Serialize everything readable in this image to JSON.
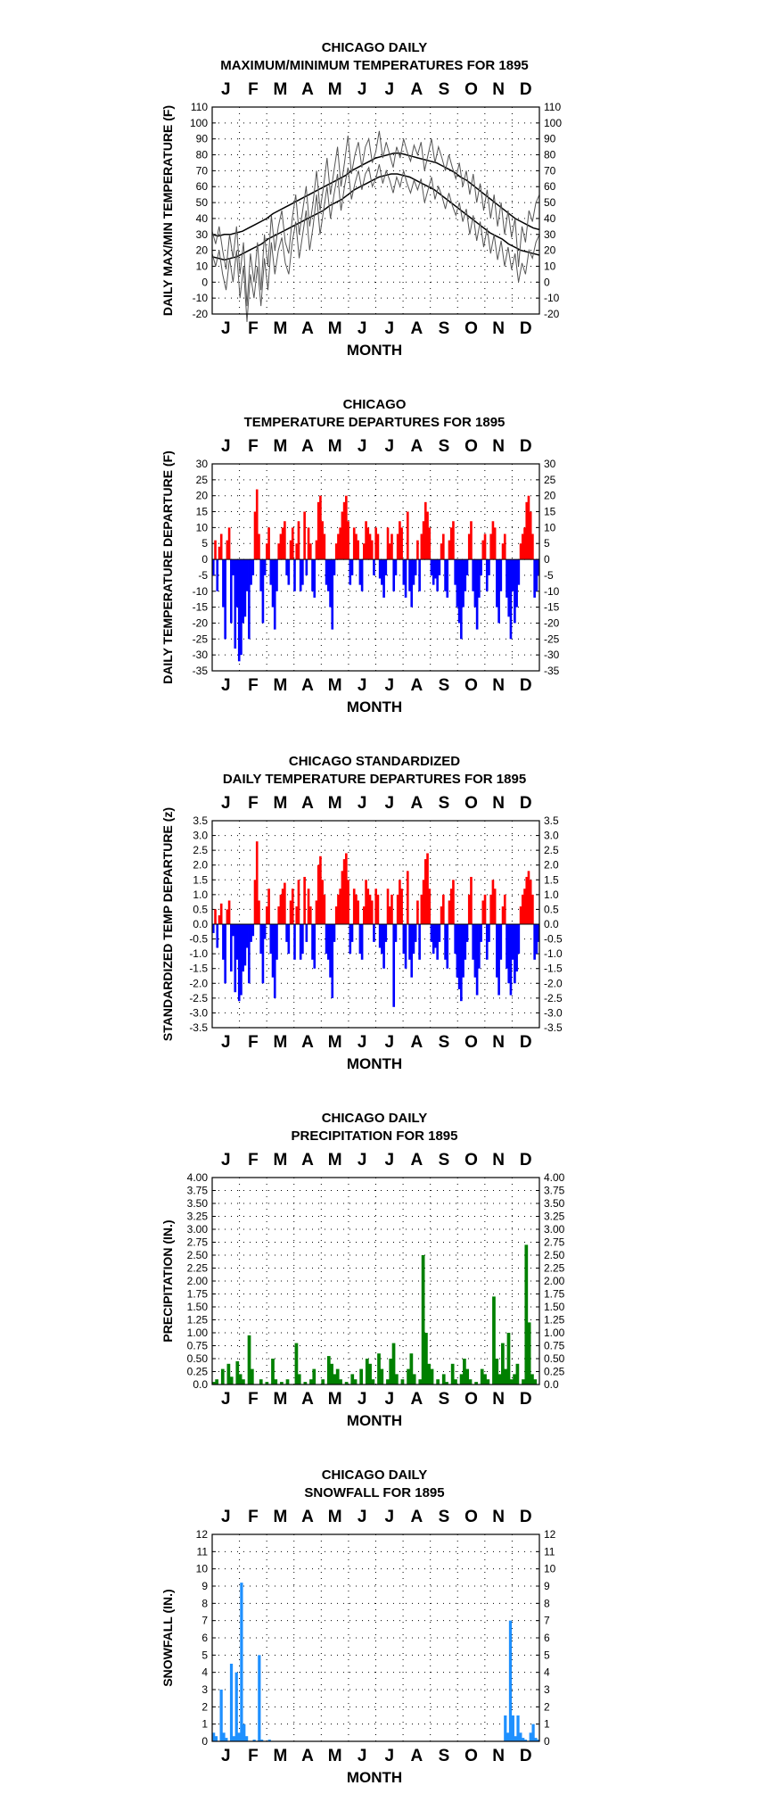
{
  "chart_data": [
    {
      "type": "line",
      "title": "CHICAGO DAILY",
      "subtitle": "MAXIMUM/MINIMUM TEMPERATURES FOR 1895",
      "xlabel": "MONTH",
      "ylabel": "DAILY MAX/MIN TEMPERATURE (F)",
      "ylim": [
        -20,
        110
      ],
      "yticks": [
        "110",
        "100",
        "90",
        "80",
        "70",
        "60",
        "50",
        "40",
        "30",
        "20",
        "10",
        "0",
        "-10",
        "-20"
      ],
      "months": [
        "J",
        "F",
        "M",
        "A",
        "M",
        "J",
        "J",
        "A",
        "S",
        "O",
        "N",
        "D"
      ],
      "grid": true,
      "series": [
        {
          "values": [
            30,
            29,
            30,
            30,
            31,
            32,
            34,
            36,
            38,
            40,
            43,
            45,
            47,
            49,
            51,
            53,
            55,
            57,
            59,
            61,
            63,
            65,
            67,
            70,
            72,
            74,
            76,
            78,
            79,
            80,
            81,
            81,
            80,
            79,
            78,
            77,
            76,
            75,
            73,
            71,
            69,
            66,
            64,
            61,
            58,
            55,
            52,
            49,
            46,
            43,
            40,
            38,
            36,
            34,
            33
          ]
        },
        {
          "values": [
            16,
            15,
            14,
            15,
            16,
            18,
            20,
            22,
            24,
            27,
            29,
            31,
            33,
            35,
            37,
            39,
            41,
            43,
            45,
            48,
            50,
            52,
            55,
            58,
            60,
            62,
            64,
            66,
            67,
            68,
            68,
            67,
            66,
            64,
            62,
            60,
            58,
            55,
            52,
            49,
            46,
            43,
            40,
            37,
            34,
            31,
            29,
            27,
            24,
            22,
            20,
            19,
            18,
            17
          ]
        },
        {
          "values": [
            32,
            24,
            35,
            20,
            8,
            30,
            15,
            35,
            5,
            25,
            -15,
            18,
            0,
            25,
            -5,
            30,
            10,
            42,
            20,
            35,
            45,
            25,
            18,
            40,
            55,
            30,
            45,
            60,
            35,
            50,
            70,
            45,
            60,
            78,
            55,
            70,
            85,
            60,
            75,
            92,
            68,
            80,
            88,
            72,
            85,
            90,
            75,
            82,
            95,
            78,
            88,
            80,
            72,
            85,
            78,
            90,
            82,
            76,
            86,
            80,
            88,
            70,
            80,
            90,
            75,
            85,
            78,
            70,
            80,
            72,
            65,
            75,
            60,
            70,
            55,
            68,
            50,
            62,
            45,
            58,
            40,
            55,
            35,
            50,
            30,
            45,
            28,
            40,
            10,
            35,
            25,
            45,
            38,
            50,
            55
          ]
        },
        {
          "values": [
            18,
            10,
            20,
            5,
            -5,
            15,
            0,
            20,
            -10,
            10,
            -25,
            5,
            -10,
            10,
            -15,
            15,
            -5,
            25,
            5,
            20,
            28,
            12,
            5,
            25,
            38,
            15,
            30,
            45,
            20,
            35,
            55,
            30,
            45,
            60,
            40,
            55,
            68,
            45,
            60,
            72,
            52,
            62,
            70,
            58,
            68,
            72,
            60,
            65,
            74,
            62,
            70,
            64,
            56,
            66,
            60,
            70,
            62,
            56,
            64,
            58,
            65,
            50,
            58,
            66,
            52,
            60,
            54,
            46,
            56,
            48,
            42,
            50,
            38,
            46,
            30,
            42,
            26,
            38,
            22,
            34,
            18,
            30,
            14,
            26,
            10,
            22,
            8,
            18,
            0,
            12,
            5,
            20,
            15,
            25,
            30
          ]
        }
      ]
    },
    {
      "type": "bar",
      "title": "CHICAGO",
      "subtitle": "TEMPERATURE DEPARTURES FOR 1895",
      "xlabel": "MONTH",
      "ylabel": "DAILY TEMPERATURE DEPARTURE (F)",
      "ylim": [
        -35,
        30
      ],
      "yticks": [
        "30",
        "25",
        "20",
        "15",
        "10",
        "5",
        "0",
        "-5",
        "-10",
        "-15",
        "-20",
        "-25",
        "-30",
        "-35"
      ],
      "months": [
        "J",
        "F",
        "M",
        "A",
        "M",
        "J",
        "J",
        "A",
        "S",
        "O",
        "N",
        "D"
      ],
      "grid": true,
      "colors": {
        "positive": "#ff0000",
        "negative": "#0000ff"
      },
      "values": [
        -5,
        6,
        -10,
        4,
        8,
        -15,
        -25,
        6,
        10,
        -20,
        -5,
        -28,
        -15,
        -32,
        -30,
        -20,
        -18,
        -10,
        -25,
        -8,
        -5,
        15,
        22,
        8,
        -10,
        -20,
        -5,
        5,
        10,
        -8,
        -15,
        -22,
        -10,
        5,
        8,
        10,
        12,
        -5,
        -8,
        6,
        10,
        -10,
        5,
        12,
        -10,
        -8,
        15,
        -5,
        10,
        5,
        -10,
        -12,
        6,
        18,
        20,
        12,
        8,
        -8,
        -10,
        -15,
        -22,
        -5,
        5,
        8,
        10,
        15,
        18,
        20,
        12,
        -8,
        -5,
        10,
        8,
        6,
        -8,
        -10,
        5,
        12,
        10,
        8,
        6,
        -5,
        10,
        8,
        -6,
        -8,
        -12,
        -5,
        10,
        5,
        8,
        -10,
        -5,
        8,
        12,
        10,
        -8,
        -12,
        15,
        -10,
        -15,
        -8,
        -5,
        6,
        -10,
        8,
        12,
        18,
        15,
        10,
        -5,
        -8,
        -6,
        -10,
        -5,
        5,
        8,
        -10,
        -12,
        6,
        10,
        12,
        -8,
        -15,
        -20,
        -25,
        -15,
        -10,
        -5,
        8,
        12,
        -10,
        -15,
        -22,
        -12,
        -5,
        6,
        8,
        -10,
        -5,
        8,
        12,
        10,
        -15,
        -20,
        -10,
        5,
        8,
        -12,
        -18,
        -25,
        -10,
        -20,
        -15,
        -8,
        5,
        8,
        10,
        18,
        20,
        15,
        8,
        -12,
        -10,
        -5
      ]
    },
    {
      "type": "bar",
      "title": "CHICAGO STANDARDIZED",
      "subtitle": "DAILY TEMPERATURE DEPARTURES FOR 1895",
      "xlabel": "MONTH",
      "ylabel": "STANDARDIZED TEMP DEPARTURE (z)",
      "ylim": [
        -3.5,
        3.5
      ],
      "yticks": [
        "3.5",
        "3.0",
        "2.5",
        "2.0",
        "1.5",
        "1.0",
        "0.5",
        "0.0",
        "-0.5",
        "-1.0",
        "-1.5",
        "-2.0",
        "-2.5",
        "-3.0",
        "-3.5"
      ],
      "months": [
        "J",
        "F",
        "M",
        "A",
        "M",
        "J",
        "J",
        "A",
        "S",
        "O",
        "N",
        "D"
      ],
      "grid": true,
      "colors": {
        "positive": "#ff0000",
        "negative": "#0000ff"
      },
      "values": [
        -0.3,
        0.5,
        -0.8,
        0.3,
        0.7,
        -1.2,
        -2.0,
        0.5,
        0.8,
        -1.6,
        -0.4,
        -2.3,
        -1.2,
        -2.6,
        -2.4,
        -1.6,
        -1.4,
        -0.8,
        -2.0,
        -0.6,
        -0.4,
        1.5,
        2.8,
        0.8,
        -1.0,
        -2.0,
        -0.5,
        0.6,
        1.2,
        -1.0,
        -1.8,
        -2.5,
        -1.2,
        0.6,
        1.0,
        1.2,
        1.4,
        -0.6,
        -1.0,
        0.8,
        1.2,
        -1.2,
        0.6,
        1.5,
        -1.2,
        -1.0,
        1.6,
        -0.6,
        1.2,
        0.6,
        -1.2,
        -1.5,
        0.8,
        2.0,
        2.3,
        1.5,
        1.0,
        -1.0,
        -1.2,
        -1.8,
        -2.5,
        -0.6,
        0.6,
        1.0,
        1.2,
        1.8,
        2.2,
        2.4,
        1.5,
        -1.0,
        -0.6,
        1.2,
        1.0,
        0.8,
        -1.0,
        -1.2,
        0.6,
        1.5,
        1.2,
        1.0,
        0.8,
        -0.6,
        1.2,
        1.0,
        -0.8,
        -1.0,
        -1.5,
        -0.6,
        1.2,
        0.6,
        1.0,
        -2.8,
        -0.6,
        1.0,
        1.5,
        1.2,
        -1.0,
        -1.5,
        1.8,
        -1.2,
        -1.8,
        -1.0,
        -0.6,
        0.8,
        -1.2,
        1.0,
        1.5,
        2.2,
        2.4,
        1.2,
        -0.6,
        -1.0,
        -0.8,
        -1.2,
        -0.6,
        0.6,
        1.0,
        -1.2,
        -1.5,
        0.8,
        1.2,
        1.5,
        -1.0,
        -1.8,
        -2.2,
        -2.6,
        -1.8,
        -1.2,
        -0.6,
        1.0,
        1.6,
        -1.2,
        -1.8,
        -2.4,
        -1.5,
        -0.6,
        0.8,
        1.0,
        -1.2,
        -0.6,
        1.0,
        1.5,
        1.2,
        -1.8,
        -2.4,
        -1.2,
        0.6,
        1.0,
        -1.5,
        -2.0,
        -2.4,
        -1.2,
        -2.0,
        -1.6,
        -1.0,
        0.6,
        1.0,
        1.2,
        1.6,
        1.8,
        1.5,
        1.0,
        -1.2,
        -1.0,
        -0.6
      ]
    },
    {
      "type": "bar",
      "title": "CHICAGO DAILY",
      "subtitle": "PRECIPITATION FOR 1895",
      "xlabel": "MONTH",
      "ylabel": "PRECIPITATION (IN.)",
      "ylim": [
        0,
        4
      ],
      "yticks": [
        "4.00",
        "3.75",
        "3.50",
        "3.25",
        "3.00",
        "2.75",
        "2.50",
        "2.25",
        "2.00",
        "1.75",
        "1.50",
        "1.25",
        "1.00",
        "0.75",
        "0.50",
        "0.25",
        "0.0"
      ],
      "months": [
        "J",
        "F",
        "M",
        "A",
        "M",
        "J",
        "J",
        "A",
        "S",
        "O",
        "N",
        "D"
      ],
      "grid": true,
      "colors": {
        "bar": "#008000"
      },
      "values": [
        0.05,
        0.1,
        0,
        0.3,
        0,
        0.4,
        0.15,
        0,
        0.45,
        0.2,
        0.1,
        0,
        0.95,
        0.3,
        0,
        0,
        0.1,
        0,
        0.05,
        0,
        0.5,
        0.1,
        0,
        0.05,
        0,
        0.1,
        0,
        0,
        0.8,
        0.2,
        0,
        0.05,
        0,
        0.1,
        0.3,
        0,
        0,
        0.1,
        0,
        0.55,
        0.4,
        0.2,
        0.3,
        0.1,
        0,
        0.05,
        0,
        0.2,
        0.1,
        0,
        0.3,
        0,
        0.5,
        0.4,
        0.1,
        0,
        0.6,
        0.3,
        0,
        0.1,
        0.5,
        0.8,
        0.2,
        0,
        0.1,
        0,
        0.3,
        0.6,
        0.2,
        0,
        0.1,
        2.5,
        1.0,
        0.4,
        0.3,
        0,
        0.1,
        0,
        0.2,
        0.05,
        0,
        0.4,
        0.1,
        0,
        0.2,
        0.5,
        0.3,
        0.1,
        0,
        0.05,
        0,
        0.3,
        0.2,
        0.1,
        0,
        1.7,
        0.5,
        0.2,
        0.8,
        0.3,
        1.0,
        0.1,
        0.2,
        0.4,
        0,
        0.1,
        2.7,
        1.2,
        0.2,
        0.1,
        0
      ]
    },
    {
      "type": "bar",
      "title": "CHICAGO DAILY",
      "subtitle": "SNOWFALL FOR 1895",
      "xlabel": "MONTH",
      "ylabel": "SNOWFALL (IN.)",
      "ylim": [
        0,
        12
      ],
      "yticks": [
        "12",
        "11",
        "10",
        "9",
        "8",
        "7",
        "6",
        "5",
        "4",
        "3",
        "2",
        "1",
        "0"
      ],
      "months": [
        "J",
        "F",
        "M",
        "A",
        "M",
        "J",
        "J",
        "A",
        "S",
        "O",
        "N",
        "D"
      ],
      "grid": true,
      "colors": {
        "bar": "#1e90ff"
      },
      "values": [
        0.5,
        0.3,
        0,
        3.0,
        0.5,
        0.2,
        0,
        4.5,
        0.3,
        4.0,
        0.5,
        9.2,
        1.0,
        0.3,
        0,
        0,
        0.1,
        0,
        5.0,
        0.1,
        0,
        0,
        0.1,
        0,
        0,
        0,
        0,
        0,
        0,
        0,
        0,
        0,
        0,
        0,
        0,
        0,
        0,
        0,
        0,
        0,
        0,
        0,
        0,
        0,
        0,
        0,
        0,
        0,
        0,
        0,
        0,
        0,
        0,
        0,
        0,
        0,
        0,
        0,
        0,
        0,
        0,
        0,
        0,
        0,
        0,
        0,
        0,
        0,
        0,
        0,
        0,
        0,
        0,
        0,
        0,
        0,
        0,
        0,
        0,
        0,
        0,
        0,
        0,
        0,
        0,
        0,
        0,
        0,
        0,
        0,
        0,
        0,
        0,
        0,
        0,
        0,
        0,
        0,
        0,
        0,
        0,
        0,
        0,
        0,
        0,
        0,
        0,
        0,
        0,
        0,
        0,
        0,
        0,
        0,
        0,
        1.5,
        0.5,
        7.0,
        1.5,
        0.3,
        1.5,
        0.5,
        0.2,
        0.1,
        0,
        0.5,
        1.0,
        0.2,
        0.1
      ]
    }
  ]
}
